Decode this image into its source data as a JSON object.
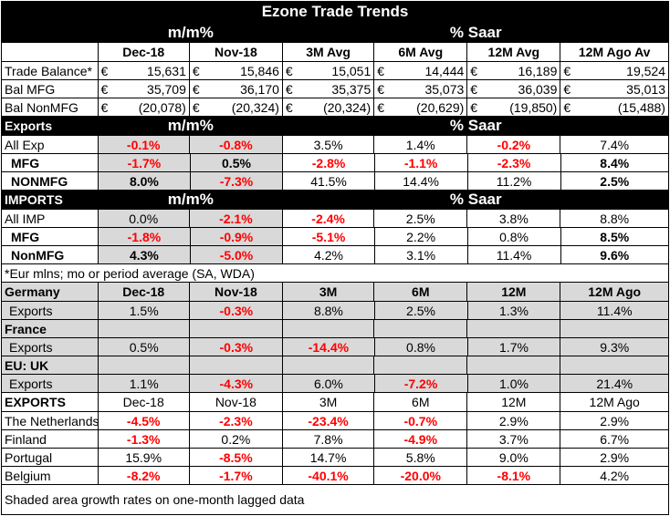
{
  "title": "Ezone Trade Trends",
  "section_headers": {
    "mm": "m/m%",
    "saar": "% Saar"
  },
  "columns": [
    "Dec-18",
    "Nov-18",
    "3M Avg",
    "6M Avg",
    "12M Avg",
    "12M Ago Av"
  ],
  "balance_rows": [
    {
      "label": "Trade Balance*",
      "cur": "€",
      "values": [
        "15,631",
        "15,846",
        "15,051",
        "14,444",
        "16,189",
        "19,524"
      ]
    },
    {
      "label": " Bal MFG",
      "cur": "€",
      "values": [
        "35,709",
        "36,170",
        "35,375",
        "35,073",
        "36,039",
        "35,013"
      ]
    },
    {
      "label": " Bal NonMFG",
      "cur": "€",
      "values": [
        "(20,078)",
        "(20,324)",
        "(20,324)",
        "(20,629)",
        "(19,850)",
        "(15,488)"
      ]
    }
  ],
  "exports": {
    "header": "Exports",
    "rows": [
      {
        "label": "All Exp",
        "values": [
          "-0.1%",
          "-0.8%",
          "3.5%",
          "1.4%",
          "-0.2%",
          "7.4%"
        ]
      },
      {
        "label": "MFG",
        "values": [
          "-1.7%",
          "0.5%",
          "-2.8%",
          "-1.1%",
          "-2.3%",
          "8.4%"
        ]
      },
      {
        "label": "NONMFG",
        "values": [
          "8.0%",
          "-7.3%",
          "41.5%",
          "14.4%",
          "11.2%",
          "2.5%"
        ]
      }
    ]
  },
  "imports": {
    "header": "IMPORTS",
    "rows": [
      {
        "label": "All IMP",
        "values": [
          "0.0%",
          "-2.1%",
          "-2.4%",
          "2.5%",
          "3.8%",
          "8.8%"
        ]
      },
      {
        "label": "MFG",
        "values": [
          "-1.8%",
          "-0.9%",
          "-5.1%",
          "2.2%",
          "0.8%",
          "8.5%"
        ]
      },
      {
        "label": "NonMFG",
        "values": [
          "4.3%",
          "-5.0%",
          "4.2%",
          "3.1%",
          "11.4%",
          "9.6%"
        ]
      }
    ]
  },
  "footnote": "*Eur mlns; mo or period average (SA, WDA)",
  "country_header": {
    "label": "Germany",
    "columns": [
      "Dec-18",
      "Nov-18",
      "3M",
      "6M",
      "12M",
      "12M Ago"
    ]
  },
  "countries": [
    {
      "name": "Germany",
      "label": "Exports",
      "values": [
        "1.5%",
        "-0.3%",
        "8.8%",
        "2.5%",
        "1.3%",
        "11.4%"
      ]
    },
    {
      "name": "France",
      "label": "Exports",
      "values": [
        "0.5%",
        "-0.3%",
        "-14.4%",
        "0.8%",
        "1.7%",
        "9.3%"
      ]
    },
    {
      "name": "EU: UK",
      "label": "Exports",
      "values": [
        "1.1%",
        "-4.3%",
        "6.0%",
        "-7.2%",
        "1.0%",
        "21.4%"
      ]
    }
  ],
  "exports2": {
    "header": "EXPORTS",
    "columns": [
      "Dec-18",
      "Nov-18",
      "3M",
      "6M",
      "12M",
      "12M Ago"
    ],
    "rows": [
      {
        "label": "The Netherlands",
        "values": [
          "-4.5%",
          "-2.3%",
          "-23.4%",
          "-0.7%",
          "2.9%",
          "2.9%"
        ]
      },
      {
        "label": "Finland",
        "values": [
          "-1.3%",
          "0.2%",
          "7.8%",
          "-4.9%",
          "3.7%",
          "6.7%"
        ]
      },
      {
        "label": "Portugal",
        "values": [
          "15.9%",
          "-8.5%",
          "14.7%",
          "5.8%",
          "9.0%",
          "2.9%"
        ]
      },
      {
        "label": "Belgium",
        "values": [
          "-8.2%",
          "-1.7%",
          "-40.1%",
          "-20.0%",
          "-8.1%",
          "4.2%"
        ]
      }
    ]
  },
  "bottom_note": "Shaded area growth rates on one-month lagged data"
}
